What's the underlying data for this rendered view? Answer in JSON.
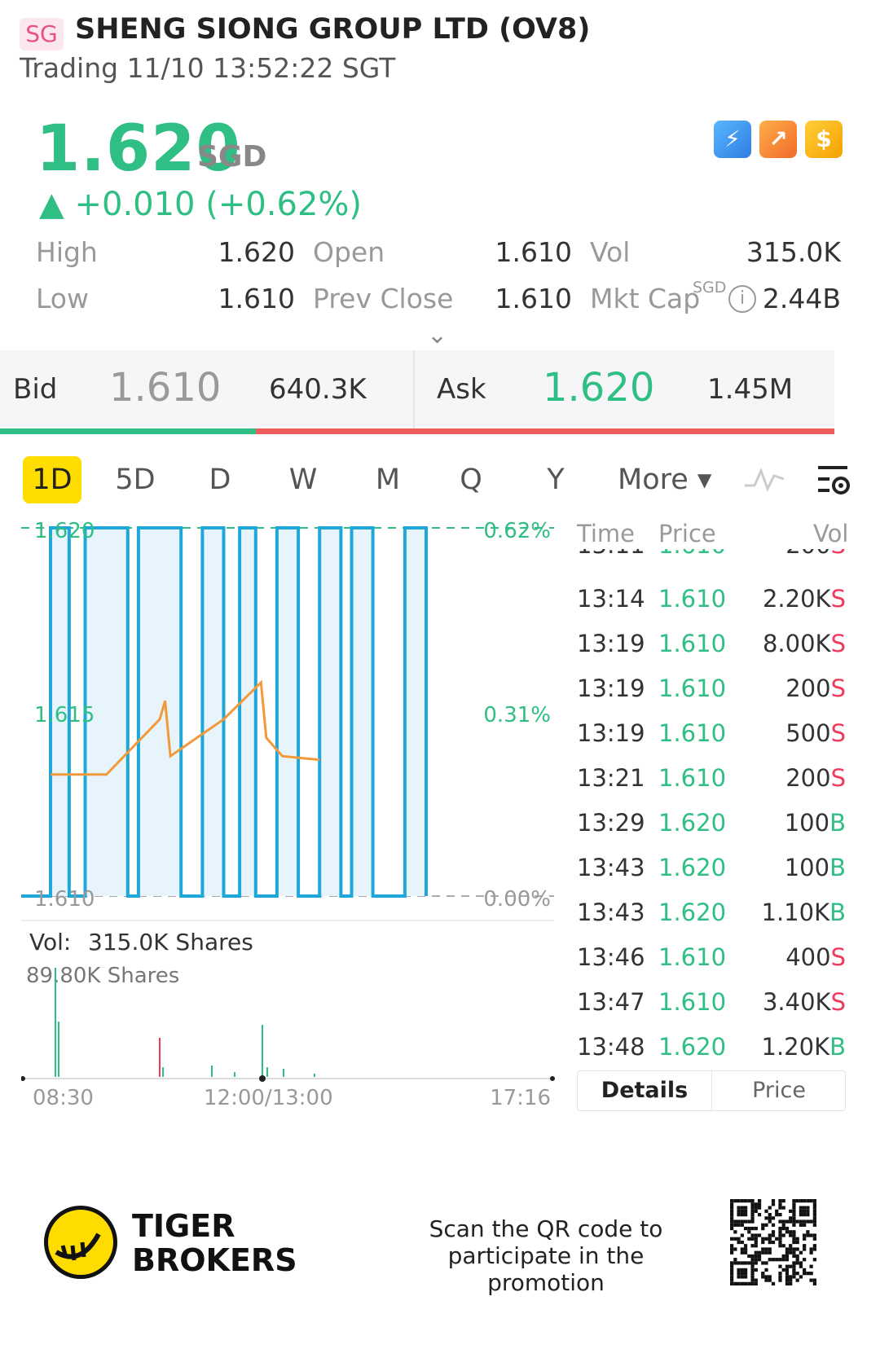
{
  "header": {
    "market": "SG",
    "name": "SHENG SIONG GROUP LTD (OV8)",
    "status": "Trading 11/10 13:52:22 SGT"
  },
  "quote": {
    "price": "1.620",
    "currency": "SGD",
    "change": "▲ +0.010 (+0.62%)",
    "color_up": "#2fbe83",
    "color_down": "#ef3a5d"
  },
  "icons": [
    "lightning-icon",
    "trend-icon",
    "dollar-icon"
  ],
  "stats": {
    "high_label": "High",
    "high": "1.620",
    "open_label": "Open",
    "open": "1.610",
    "vol_label": "Vol",
    "vol": "315.0K",
    "low_label": "Low",
    "low": "1.610",
    "prev_close_label": "Prev Close",
    "prev_close": "1.610",
    "mkt_cap_label": "Mkt Cap",
    "mkt_cap_currency": "SGD",
    "mkt_cap": "2.44B"
  },
  "bidask": {
    "bid_label": "Bid",
    "bid_price": "1.610",
    "bid_size": "640.3K",
    "ask_label": "Ask",
    "ask_price": "1.620",
    "ask_size": "1.45M"
  },
  "tabs": [
    "1D",
    "5D",
    "D",
    "W",
    "M",
    "Q",
    "Y",
    "More ▾"
  ],
  "chart": {
    "price_top": "1.620",
    "price_mid": "1.615",
    "price_bottom": "1.610",
    "pct_top": "0.62%",
    "pct_mid": "0.31%",
    "pct_bottom": "0.00%",
    "vol_label": "Vol:",
    "vol_value": "315.0K Shares",
    "vol_max": "89.80K Shares",
    "time_start": "08:30",
    "time_mid": "12:00/13:00",
    "time_end": "17:16"
  },
  "chart_data": {
    "type": "line",
    "title": "",
    "ylim": [
      1.61,
      1.62
    ],
    "series": [],
    "price_series_points": [
      [
        0,
        1.61
      ],
      [
        0.055,
        1.61
      ],
      [
        0.055,
        1.62
      ],
      [
        0.09,
        1.62
      ],
      [
        0.09,
        1.61
      ],
      [
        0.12,
        1.61
      ],
      [
        0.12,
        1.62
      ],
      [
        0.2,
        1.62
      ],
      [
        0.2,
        1.61
      ],
      [
        0.22,
        1.61
      ],
      [
        0.22,
        1.62
      ],
      [
        0.3,
        1.62
      ],
      [
        0.3,
        1.61
      ],
      [
        0.34,
        1.61
      ],
      [
        0.34,
        1.62
      ],
      [
        0.38,
        1.62
      ],
      [
        0.38,
        1.61
      ],
      [
        0.41,
        1.61
      ],
      [
        0.41,
        1.62
      ],
      [
        0.44,
        1.62
      ],
      [
        0.44,
        1.61
      ],
      [
        0.48,
        1.61
      ],
      [
        0.48,
        1.62
      ],
      [
        0.52,
        1.62
      ],
      [
        0.52,
        1.61
      ],
      [
        0.56,
        1.61
      ],
      [
        0.56,
        1.62
      ],
      [
        0.6,
        1.62
      ],
      [
        0.6,
        1.61
      ],
      [
        0.62,
        1.61
      ],
      [
        0.62,
        1.62
      ],
      [
        0.66,
        1.62
      ],
      [
        0.66,
        1.61
      ],
      [
        0.72,
        1.61
      ],
      [
        0.72,
        1.62
      ],
      [
        0.76,
        1.62
      ],
      [
        0.76,
        1.61
      ]
    ],
    "avg_points": [
      [
        0.055,
        1.6133
      ],
      [
        0.16,
        1.6133
      ],
      [
        0.26,
        1.6148
      ],
      [
        0.27,
        1.6153
      ],
      [
        0.28,
        1.6138
      ],
      [
        0.38,
        1.6148
      ],
      [
        0.45,
        1.6158
      ],
      [
        0.46,
        1.6143
      ],
      [
        0.49,
        1.6138
      ],
      [
        0.56,
        1.6137
      ]
    ]
  },
  "trades": {
    "headers": [
      "Time",
      "Price",
      "Vol"
    ],
    "rows": [
      {
        "time": "13:14",
        "price": "1.610",
        "vol": "2.20K",
        "side": "S"
      },
      {
        "time": "13:19",
        "price": "1.610",
        "vol": "8.00K",
        "side": "S"
      },
      {
        "time": "13:19",
        "price": "1.610",
        "vol": "200",
        "side": "S"
      },
      {
        "time": "13:19",
        "price": "1.610",
        "vol": "500",
        "side": "S"
      },
      {
        "time": "13:21",
        "price": "1.610",
        "vol": "200",
        "side": "S"
      },
      {
        "time": "13:29",
        "price": "1.620",
        "vol": "100",
        "side": "B"
      },
      {
        "time": "13:43",
        "price": "1.620",
        "vol": "100",
        "side": "B"
      },
      {
        "time": "13:43",
        "price": "1.620",
        "vol": "1.10K",
        "side": "B"
      },
      {
        "time": "13:46",
        "price": "1.610",
        "vol": "400",
        "side": "S"
      },
      {
        "time": "13:47",
        "price": "1.610",
        "vol": "3.40K",
        "side": "S"
      },
      {
        "time": "13:48",
        "price": "1.620",
        "vol": "1.20K",
        "side": "B"
      }
    ],
    "tab_details": "Details",
    "tab_price": "Price"
  },
  "footer": {
    "brand_line1": "TIGER",
    "brand_line2": "BROKERS",
    "promo_line1": "Scan the QR code to",
    "promo_line2": "participate in the promotion"
  }
}
